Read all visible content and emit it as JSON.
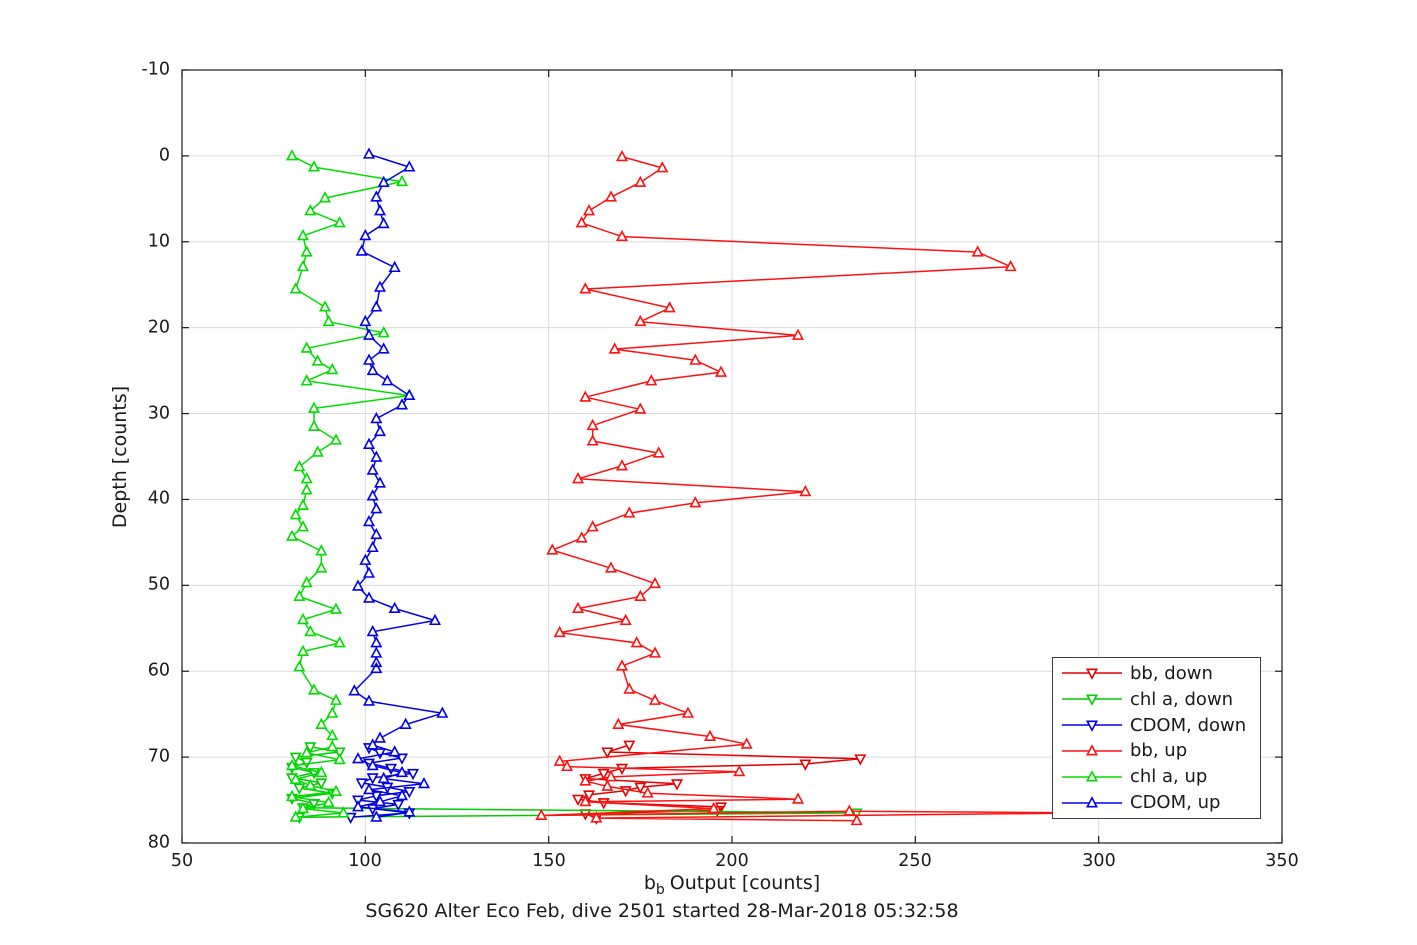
{
  "figure": {
    "title": "SG620 Alter Eco Feb, dive 2501 started 28-Mar-2018 05:32:58",
    "xlabel_prefix": "b",
    "xlabel_sub": "b",
    "xlabel_rest": "Output [counts]",
    "ylabel": "Depth [counts]"
  },
  "chart_data": {
    "type": "line",
    "title": "SG620 Alter Eco Feb, dive 2501 started 28-Mar-2018 05:32:58",
    "xlabel": "b_b Output [counts]",
    "ylabel": "Depth [counts]",
    "xlim": [
      50,
      350
    ],
    "ylim": [
      -10,
      80
    ],
    "y_reversed_depth_axis": true,
    "grid": true,
    "legend_position": "right-lower-inside",
    "x_ticks": [
      50,
      100,
      150,
      200,
      250,
      300,
      350
    ],
    "y_ticks": [
      -10,
      0,
      10,
      20,
      30,
      40,
      50,
      60,
      70,
      80
    ],
    "grid_color": "#dcdcdc",
    "axis_color": "#1a1a1a",
    "series": [
      {
        "name": "bb, down",
        "color": "#e60000",
        "marker": "triangle-down",
        "points": [
          [
            172,
            68.6
          ],
          [
            166,
            69.4
          ],
          [
            235,
            70.2
          ],
          [
            220,
            70.8
          ],
          [
            170,
            71.3
          ],
          [
            165,
            71.9
          ],
          [
            160,
            72.5
          ],
          [
            185,
            73.1
          ],
          [
            175,
            73.5
          ],
          [
            171,
            73.9
          ],
          [
            161,
            74.4
          ],
          [
            158,
            74.9
          ],
          [
            165,
            75.3
          ],
          [
            197,
            75.8
          ],
          [
            196,
            76.2
          ],
          [
            160,
            76.6
          ],
          [
            163,
            77.1
          ]
        ]
      },
      {
        "name": "chl a, down",
        "color": "#00cc00",
        "marker": "triangle-down",
        "points": [
          [
            85,
            68.8
          ],
          [
            93,
            69.4
          ],
          [
            81,
            70.0
          ],
          [
            84,
            70.6
          ],
          [
            80,
            71.2
          ],
          [
            86,
            71.8
          ],
          [
            80,
            72.4
          ],
          [
            88,
            73.0
          ],
          [
            82,
            73.6
          ],
          [
            91,
            74.2
          ],
          [
            80,
            74.8
          ],
          [
            86,
            75.4
          ],
          [
            83,
            75.9
          ],
          [
            234,
            76.5
          ],
          [
            82,
            77.0
          ]
        ]
      },
      {
        "name": "CDOM, down",
        "color": "#0000dd",
        "marker": "triangle-down",
        "points": [
          [
            101,
            68.9
          ],
          [
            104,
            69.5
          ],
          [
            110,
            70.1
          ],
          [
            101,
            70.7
          ],
          [
            107,
            71.3
          ],
          [
            113,
            71.9
          ],
          [
            102,
            72.4
          ],
          [
            99,
            73.0
          ],
          [
            106,
            73.5
          ],
          [
            112,
            74.0
          ],
          [
            103,
            74.5
          ],
          [
            98,
            75.0
          ],
          [
            109,
            75.5
          ],
          [
            102,
            76.0
          ],
          [
            112,
            76.5
          ],
          [
            96,
            77.0
          ]
        ]
      },
      {
        "name": "bb, up",
        "color": "#ff1111",
        "marker": "triangle-up",
        "points": [
          [
            234,
            77.4
          ],
          [
            163,
            77.1
          ],
          [
            298,
            76.5
          ],
          [
            232,
            76.3
          ],
          [
            148,
            76.8
          ],
          [
            195,
            76.0
          ],
          [
            160,
            75.2
          ],
          [
            218,
            74.9
          ],
          [
            177,
            74.2
          ],
          [
            166,
            73.4
          ],
          [
            160,
            72.8
          ],
          [
            167,
            72.3
          ],
          [
            202,
            71.7
          ],
          [
            155,
            71.1
          ],
          [
            153,
            70.5
          ],
          [
            204,
            68.5
          ],
          [
            194,
            67.6
          ],
          [
            169,
            66.2
          ],
          [
            188,
            64.9
          ],
          [
            179,
            63.4
          ],
          [
            172,
            62.1
          ],
          [
            170,
            59.4
          ],
          [
            179,
            57.9
          ],
          [
            174,
            56.7
          ],
          [
            153,
            55.5
          ],
          [
            171,
            54.1
          ],
          [
            158,
            52.7
          ],
          [
            175,
            51.3
          ],
          [
            179,
            49.8
          ],
          [
            167,
            48.0
          ],
          [
            151,
            45.9
          ],
          [
            159,
            44.5
          ],
          [
            162,
            43.2
          ],
          [
            172,
            41.6
          ],
          [
            190,
            40.4
          ],
          [
            220,
            39.1
          ],
          [
            158,
            37.6
          ],
          [
            170,
            36.1
          ],
          [
            180,
            34.6
          ],
          [
            162,
            33.2
          ],
          [
            162,
            31.4
          ],
          [
            175,
            29.5
          ],
          [
            160,
            28.1
          ],
          [
            178,
            26.2
          ],
          [
            197,
            25.2
          ],
          [
            190,
            23.8
          ],
          [
            168,
            22.5
          ],
          [
            218,
            20.9
          ],
          [
            175,
            19.3
          ],
          [
            183,
            17.7
          ],
          [
            160,
            15.5
          ],
          [
            276,
            12.9
          ],
          [
            267,
            11.2
          ],
          [
            170,
            9.4
          ],
          [
            159,
            7.8
          ],
          [
            161,
            6.4
          ],
          [
            167,
            4.8
          ],
          [
            175,
            3.1
          ],
          [
            181,
            1.4
          ],
          [
            170,
            0.1
          ]
        ]
      },
      {
        "name": "chl a, up",
        "color": "#00dd00",
        "marker": "triangle-up",
        "points": [
          [
            81,
            77.0
          ],
          [
            94,
            76.5
          ],
          [
            83,
            76.0
          ],
          [
            90,
            75.3
          ],
          [
            80,
            74.6
          ],
          [
            92,
            74.0
          ],
          [
            85,
            73.3
          ],
          [
            81,
            72.6
          ],
          [
            88,
            71.8
          ],
          [
            80,
            71.0
          ],
          [
            93,
            70.3
          ],
          [
            84,
            69.5
          ],
          [
            91,
            68.8
          ],
          [
            91,
            67.5
          ],
          [
            88,
            66.2
          ],
          [
            91,
            64.9
          ],
          [
            92,
            63.4
          ],
          [
            86,
            62.2
          ],
          [
            82,
            59.5
          ],
          [
            83,
            57.7
          ],
          [
            93,
            56.7
          ],
          [
            85,
            55.4
          ],
          [
            83,
            54.0
          ],
          [
            92,
            52.8
          ],
          [
            82,
            51.3
          ],
          [
            84,
            49.7
          ],
          [
            88,
            48.0
          ],
          [
            88,
            46.0
          ],
          [
            80,
            44.3
          ],
          [
            83,
            43.2
          ],
          [
            81,
            41.8
          ],
          [
            83,
            40.7
          ],
          [
            84,
            38.9
          ],
          [
            84,
            37.6
          ],
          [
            82,
            36.2
          ],
          [
            87,
            34.5
          ],
          [
            92,
            33.1
          ],
          [
            86,
            31.5
          ],
          [
            86,
            29.4
          ],
          [
            112,
            27.9
          ],
          [
            84,
            26.2
          ],
          [
            91,
            24.9
          ],
          [
            87,
            23.9
          ],
          [
            84,
            22.4
          ],
          [
            105,
            20.6
          ],
          [
            90,
            19.3
          ],
          [
            89,
            17.6
          ],
          [
            81,
            15.5
          ],
          [
            83,
            12.9
          ],
          [
            84,
            11.2
          ],
          [
            83,
            9.3
          ],
          [
            93,
            7.8
          ],
          [
            85,
            6.4
          ],
          [
            89,
            4.9
          ],
          [
            110,
            3.0
          ],
          [
            86,
            1.3
          ],
          [
            80,
            0.0
          ]
        ]
      },
      {
        "name": "CDOM, up",
        "color": "#0000ee",
        "marker": "triangle-up",
        "points": [
          [
            103,
            77.0
          ],
          [
            112,
            76.4
          ],
          [
            98,
            75.8
          ],
          [
            104,
            75.2
          ],
          [
            110,
            74.5
          ],
          [
            101,
            73.8
          ],
          [
            116,
            73.1
          ],
          [
            105,
            72.5
          ],
          [
            110,
            71.8
          ],
          [
            102,
            71.0
          ],
          [
            98,
            70.2
          ],
          [
            108,
            69.4
          ],
          [
            102,
            68.6
          ],
          [
            104,
            67.8
          ],
          [
            111,
            66.2
          ],
          [
            121,
            64.9
          ],
          [
            101,
            63.5
          ],
          [
            97,
            62.3
          ],
          [
            103,
            59.7
          ],
          [
            103,
            59.0
          ],
          [
            103,
            57.9
          ],
          [
            103,
            56.7
          ],
          [
            102,
            55.4
          ],
          [
            119,
            54.1
          ],
          [
            108,
            52.7
          ],
          [
            101,
            51.5
          ],
          [
            98,
            50.1
          ],
          [
            101,
            48.6
          ],
          [
            100,
            47.1
          ],
          [
            102,
            45.6
          ],
          [
            103,
            44.1
          ],
          [
            101,
            42.6
          ],
          [
            103,
            41.1
          ],
          [
            102,
            39.6
          ],
          [
            104,
            38.1
          ],
          [
            102,
            36.6
          ],
          [
            103,
            35.1
          ],
          [
            101,
            33.6
          ],
          [
            104,
            32.1
          ],
          [
            103,
            30.6
          ],
          [
            110,
            29.0
          ],
          [
            112,
            27.9
          ],
          [
            106,
            26.2
          ],
          [
            102,
            25.0
          ],
          [
            101,
            23.8
          ],
          [
            105,
            22.5
          ],
          [
            101,
            20.9
          ],
          [
            100,
            19.3
          ],
          [
            103,
            17.6
          ],
          [
            104,
            15.3
          ],
          [
            108,
            13.0
          ],
          [
            99,
            11.1
          ],
          [
            100,
            9.3
          ],
          [
            105,
            7.9
          ],
          [
            104,
            6.4
          ],
          [
            103,
            4.8
          ],
          [
            105,
            3.1
          ],
          [
            112,
            1.3
          ],
          [
            101,
            -0.2
          ]
        ]
      }
    ]
  }
}
